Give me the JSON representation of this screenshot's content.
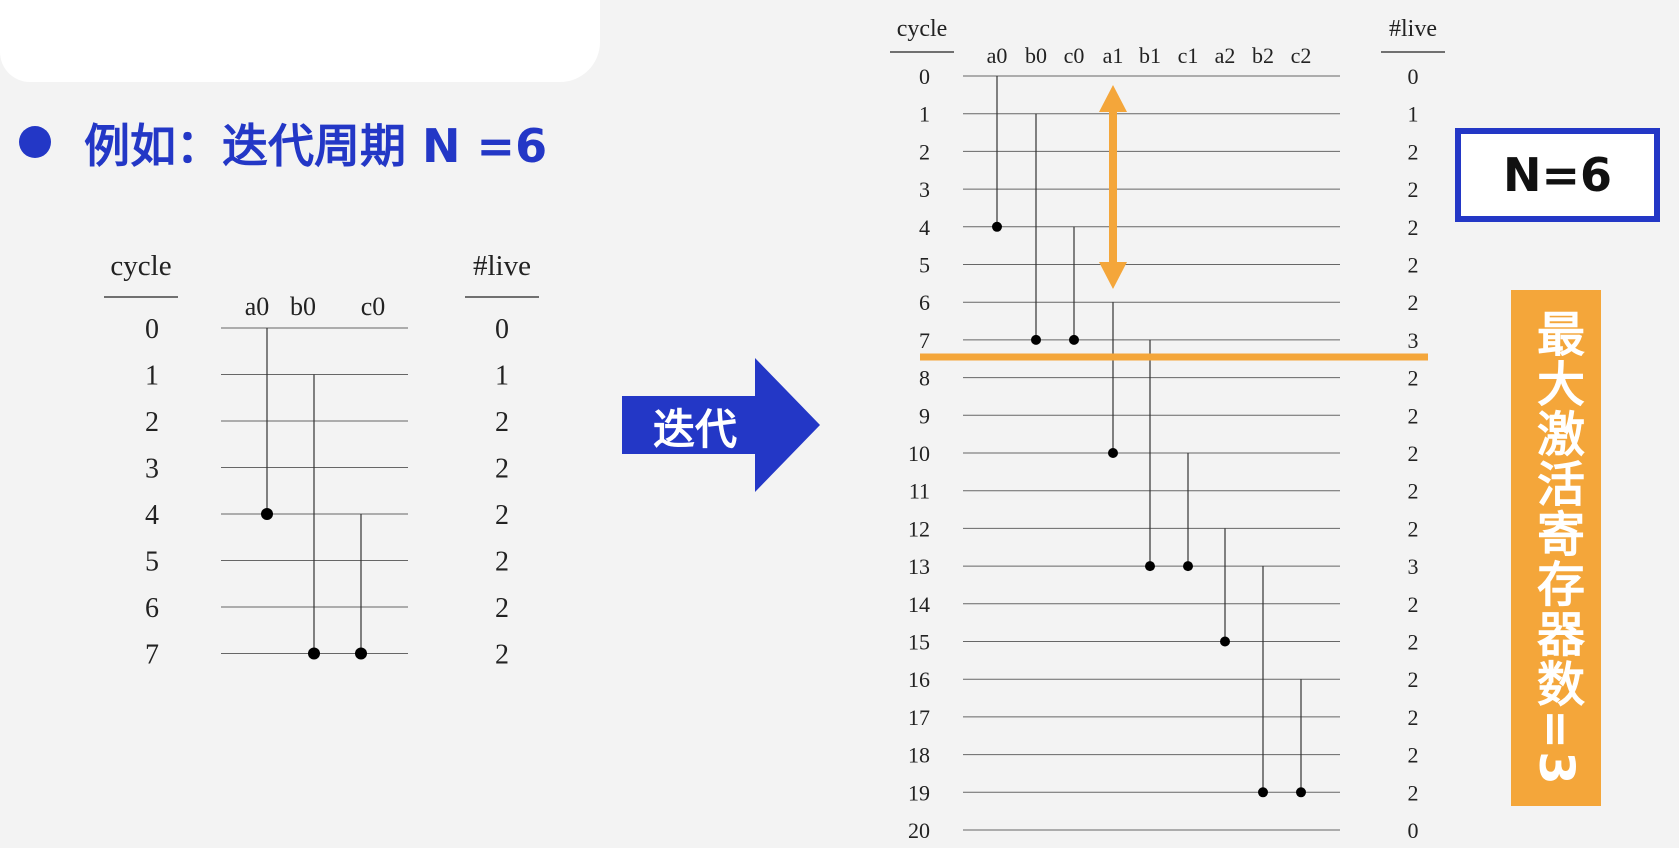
{
  "heading": "例如：迭代周期 N =6",
  "arrow_label": "迭代",
  "n_box": "N=6",
  "vertical_banner": "最大激活寄存器数=3",
  "colors": {
    "blue": "#2337c6",
    "orange": "#f4a63a",
    "line": "#555555"
  },
  "small_diagram": {
    "cycle_header": "cycle",
    "live_header": "#live",
    "cycles": [
      "0",
      "1",
      "2",
      "3",
      "4",
      "5",
      "6",
      "7"
    ],
    "live": [
      "0",
      "1",
      "2",
      "2",
      "2",
      "2",
      "2",
      "2"
    ],
    "variables": [
      {
        "name": "a0",
        "start": 0,
        "end": 4
      },
      {
        "name": "b0",
        "start": 1,
        "end": 7
      },
      {
        "name": "c0",
        "start": 4,
        "end": 7
      }
    ]
  },
  "large_diagram": {
    "cycle_header": "cycle",
    "live_header": "#live",
    "cycles": [
      "0",
      "1",
      "2",
      "3",
      "4",
      "5",
      "6",
      "7",
      "8",
      "9",
      "10",
      "11",
      "12",
      "13",
      "14",
      "15",
      "16",
      "17",
      "18",
      "19",
      "20"
    ],
    "live": [
      "0",
      "1",
      "2",
      "2",
      "2",
      "2",
      "2",
      "3",
      "2",
      "2",
      "2",
      "2",
      "2",
      "3",
      "2",
      "2",
      "2",
      "2",
      "2",
      "2",
      "0"
    ],
    "variables": [
      {
        "name": "a0",
        "start": 0,
        "end": 4
      },
      {
        "name": "b0",
        "start": 1,
        "end": 7
      },
      {
        "name": "c0",
        "start": 4,
        "end": 7
      },
      {
        "name": "a1",
        "start": 6,
        "end": 10
      },
      {
        "name": "b1",
        "start": 7,
        "end": 13
      },
      {
        "name": "c1",
        "start": 10,
        "end": 13
      },
      {
        "name": "a2",
        "start": 12,
        "end": 15
      },
      {
        "name": "b2",
        "start": 13,
        "end": 19
      },
      {
        "name": "c2",
        "start": 16,
        "end": 19
      }
    ]
  }
}
